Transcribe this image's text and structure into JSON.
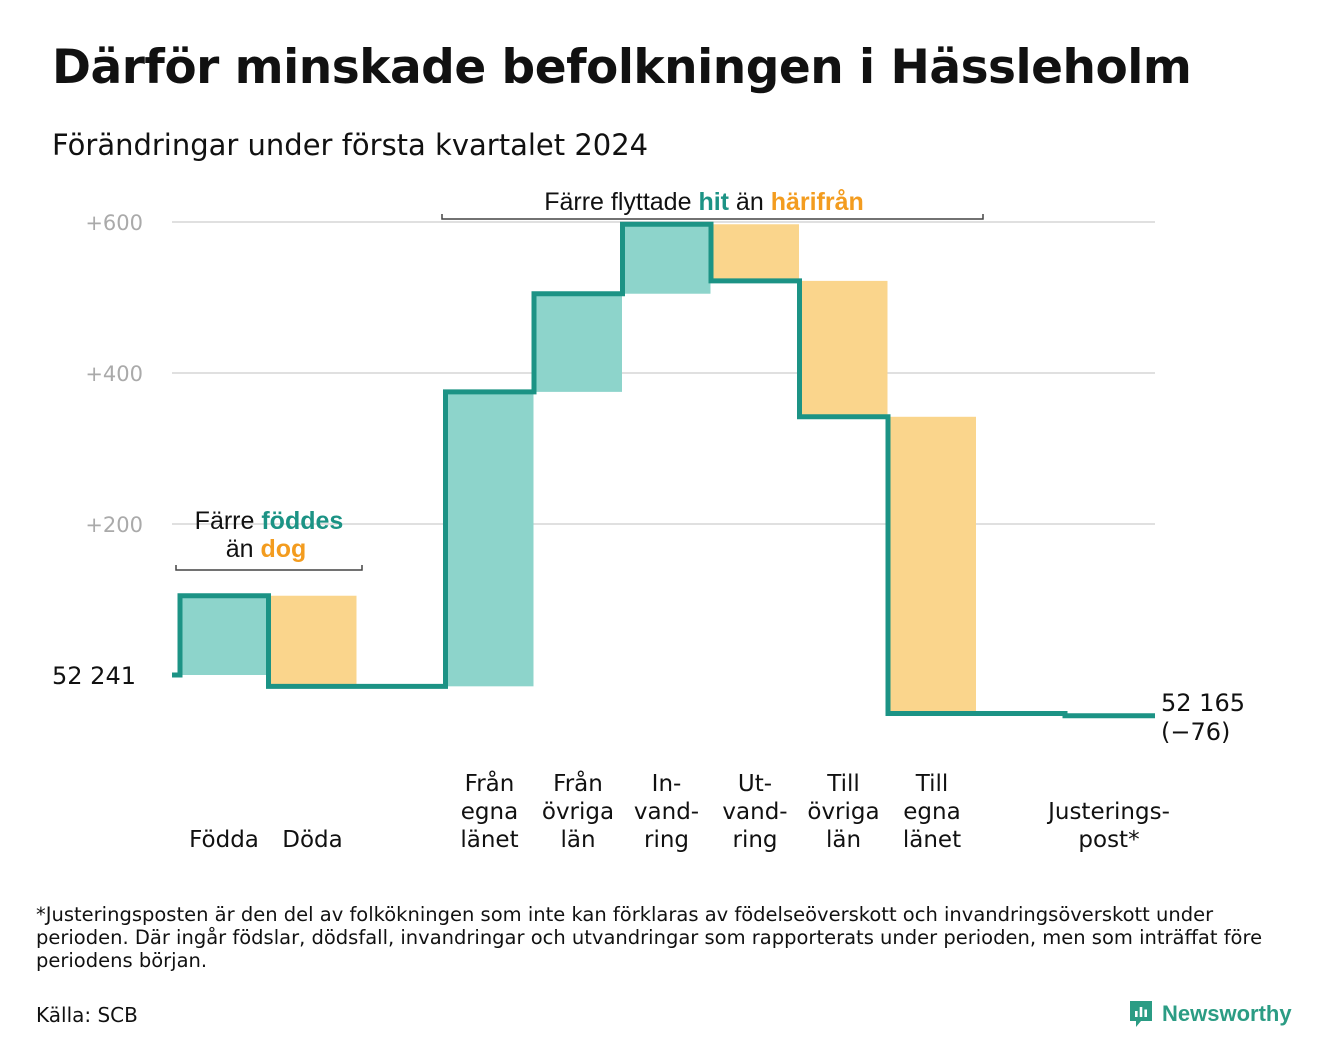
{
  "title": "Därför minskade befolkningen i Hässleholm",
  "subtitle": "Förändringar under första kvartalet 2024",
  "chart_data": {
    "type": "waterfall",
    "start_value": 52241,
    "start_label": "52  241",
    "end_value": 52165,
    "end_label_line1": "52 165",
    "end_label_line2": "(−76)",
    "ylim": [
      -76,
      600
    ],
    "yticks": [
      {
        "value": 600,
        "label": "+600"
      },
      {
        "value": 400,
        "label": "+400"
      },
      {
        "value": 200,
        "label": "+200"
      }
    ],
    "grid": true,
    "steps": [
      {
        "label_lines": [
          "Födda"
        ],
        "delta": 105,
        "kind": "in"
      },
      {
        "label_lines": [
          "Döda"
        ],
        "delta": -120,
        "kind": "out"
      },
      {
        "label_lines": [
          "Från",
          "egna",
          "länet"
        ],
        "delta": 390,
        "kind": "in"
      },
      {
        "label_lines": [
          "Från",
          "övriga",
          "län"
        ],
        "delta": 130,
        "kind": "in"
      },
      {
        "label_lines": [
          "In-",
          "vand-",
          "ring"
        ],
        "delta": 92,
        "kind": "in"
      },
      {
        "label_lines": [
          "Ut-",
          "vand-",
          "ring"
        ],
        "delta": -75,
        "kind": "out"
      },
      {
        "label_lines": [
          "Till",
          "övriga",
          "län"
        ],
        "delta": -180,
        "kind": "out"
      },
      {
        "label_lines": [
          "Till",
          "egna",
          "länet"
        ],
        "delta": -393,
        "kind": "out"
      },
      {
        "label_lines": [
          "Justerings-",
          "post*"
        ],
        "delta": -3,
        "kind": "adjust"
      }
    ],
    "colors": {
      "in": "#8dd4cb",
      "out": "#fad58c",
      "line": "#1c9385",
      "grid": "#e0e0e0",
      "teal_text": "#1c9385",
      "orange_text": "#f39c1f",
      "tick_text": "#aaaaaa"
    },
    "annotations": {
      "births": {
        "prefix": "Färre",
        "hi1": "föddes",
        "line2_prefix": "än",
        "hi2": "dog"
      },
      "moves": {
        "prefix": "Färre flyttade",
        "hi1": "hit",
        "mid": "än",
        "hi2": "härifrån"
      }
    }
  },
  "footnote": "*Justeringsposten är den del av folkökningen som inte kan förklaras av födelseöverskott och invandringsöverskott under perioden. Där ingår födslar, dödsfall, invandringar och utvandringar som rapporterats under perioden, men som inträffat före periodens början.",
  "source": "Källa: SCB",
  "brand": {
    "name": "Newsworthy",
    "icon": "newsworthy-logo-icon",
    "color": "#2b9c84"
  }
}
